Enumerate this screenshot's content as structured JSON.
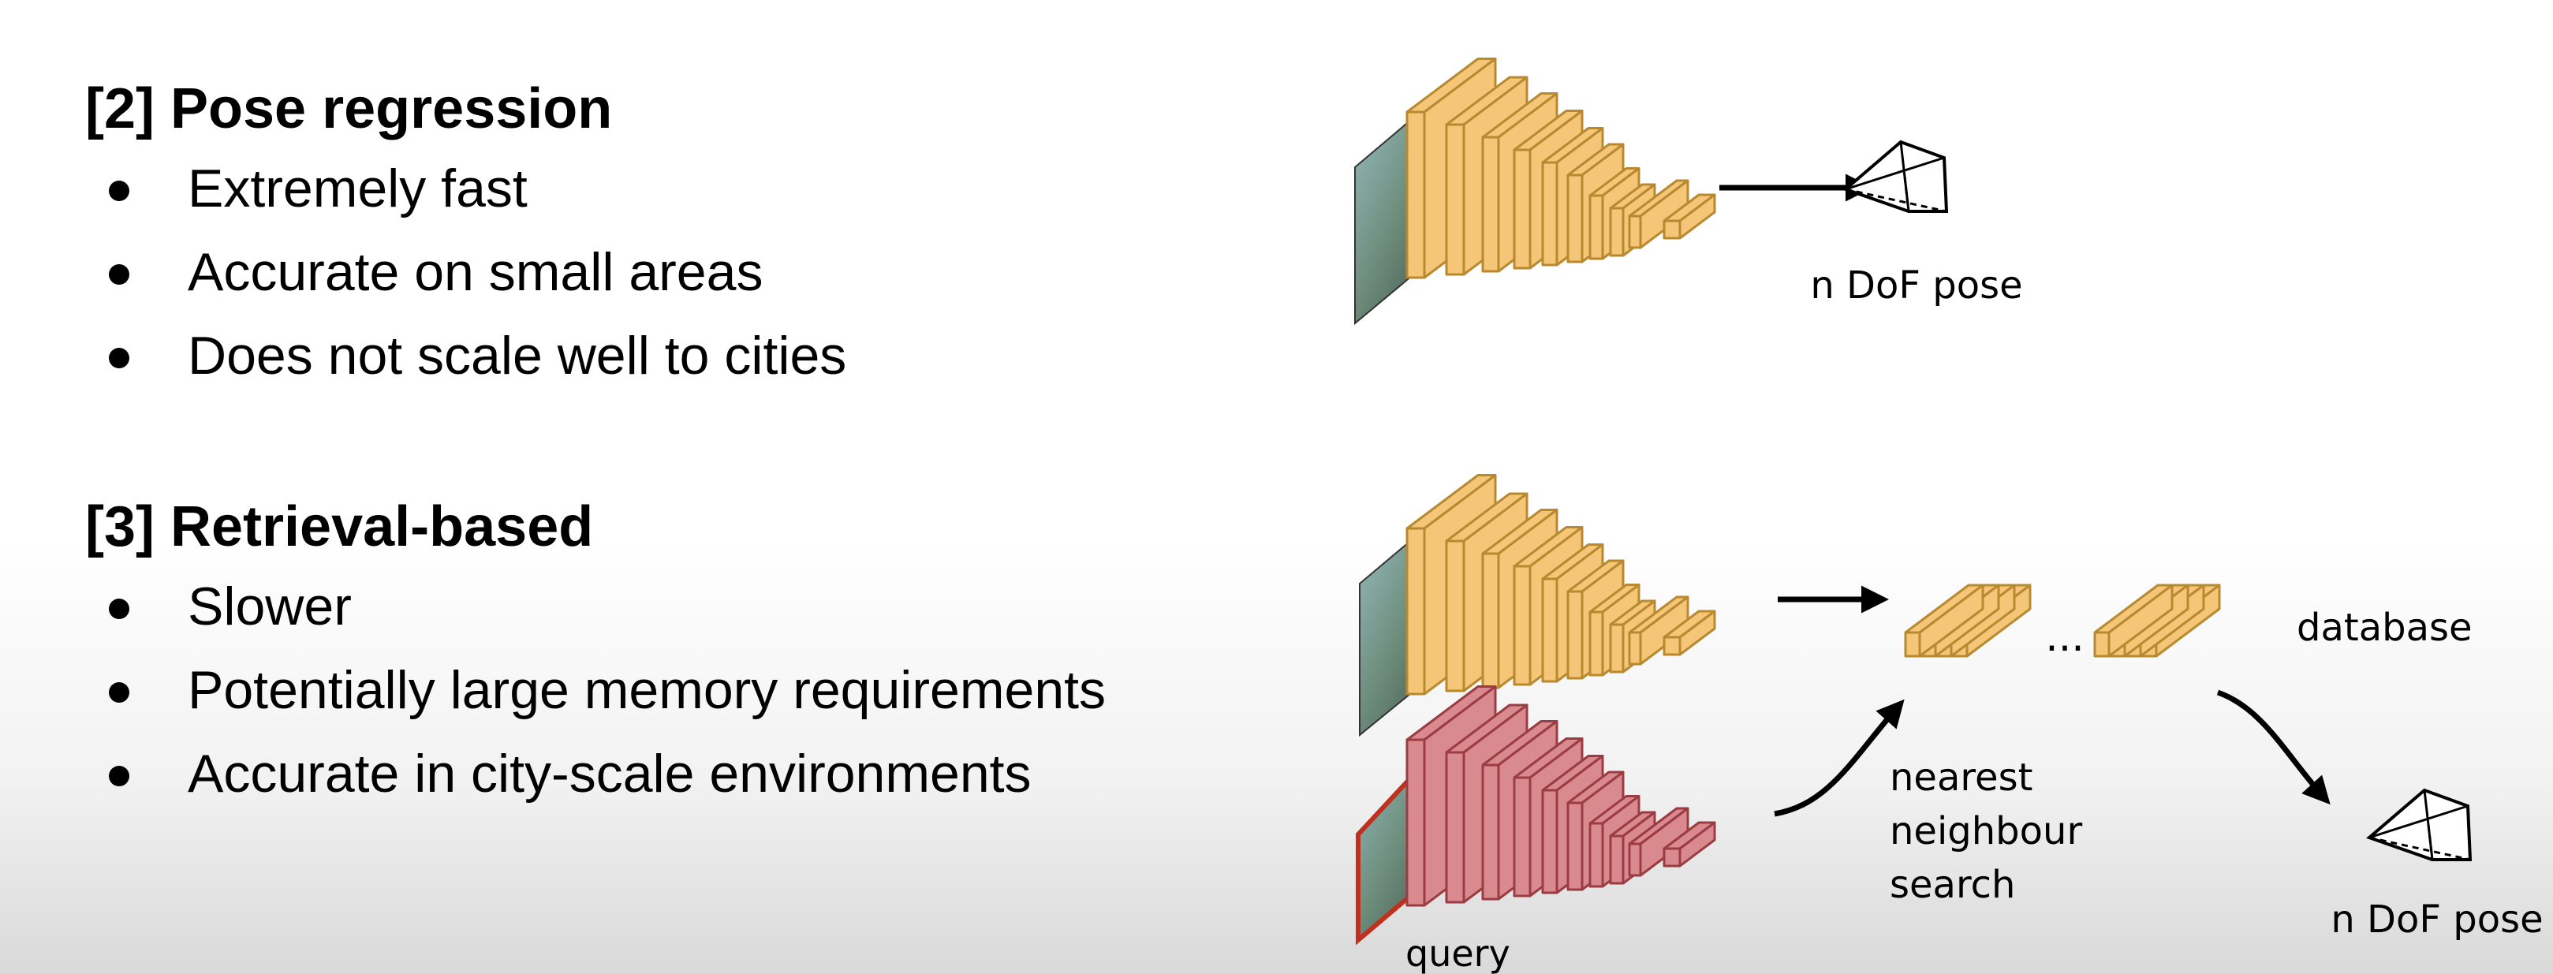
{
  "sections": [
    {
      "title": "[2] Pose regression",
      "bullets": [
        "Extremely fast",
        "Accurate on small areas",
        "Does not scale well to cities"
      ]
    },
    {
      "title": "[3] Retrieval-based",
      "bullets": [
        "Slower",
        "Potentially large memory requirements",
        "Accurate in city-scale environments"
      ]
    }
  ],
  "diagram": {
    "pose_regression": {
      "output_label": "n DoF pose"
    },
    "retrieval": {
      "database_label": "database",
      "ellipsis": "...",
      "search_label_lines": [
        "nearest",
        "neighbour",
        "search"
      ],
      "query_label": "query",
      "output_label": "n DoF pose"
    }
  },
  "colors": {
    "cnn_fill": "#F5C678",
    "cnn_stroke": "#B8892E",
    "query_fill": "#D98A8E",
    "query_stroke": "#9A3C42",
    "query_border": "#C0301F"
  }
}
